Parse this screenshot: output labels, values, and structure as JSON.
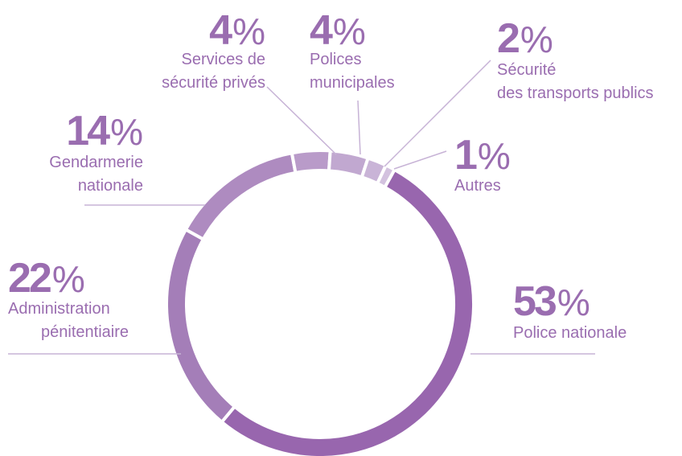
{
  "chart_data": {
    "type": "donut",
    "categories": [
      "Police nationale",
      "Administration\npénitentiaire",
      "Gendarmerie\nnationale",
      "Services de\nsécurité privés",
      "Polices\nmunicipales",
      "Sécurité\ndes transports publics",
      "Autres"
    ],
    "values": [
      53,
      22,
      14,
      4,
      4,
      2,
      1
    ],
    "value_labels": [
      "53%",
      "22%",
      "14%",
      "4%",
      "4%",
      "2%",
      "1%"
    ],
    "colors": [
      "#9866ae",
      "#a47eb8",
      "#ae8bc0",
      "#b99bc9",
      "#c1a8d0",
      "#c9b4d7",
      "#d3c2df"
    ],
    "label_color": "#9a6db0"
  }
}
